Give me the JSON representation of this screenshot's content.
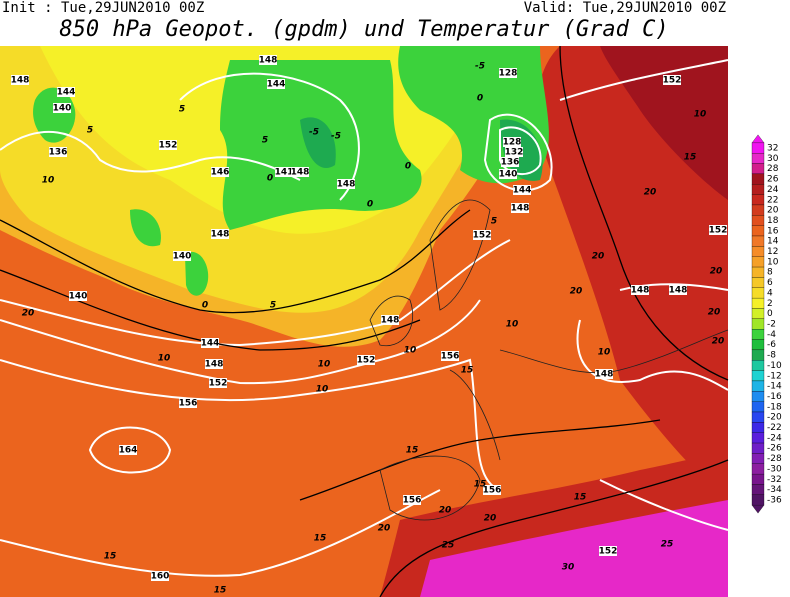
{
  "header": {
    "init": "Init : Tue,29JUN2010 00Z",
    "valid": "Valid: Tue,29JUN2010 00Z",
    "title": "850 hPa Geopot. (gpdm) und Temperatur (Grad C)"
  },
  "colorbar": {
    "levels": [
      32,
      30,
      28,
      26,
      24,
      22,
      20,
      18,
      16,
      14,
      12,
      10,
      8,
      6,
      4,
      2,
      0,
      -2,
      -4,
      -6,
      -8,
      -10,
      -12,
      -14,
      -16,
      -18,
      -20,
      -22,
      -24,
      -26,
      -28,
      -30,
      -32,
      -34,
      -36
    ],
    "colors": [
      "#f014f0",
      "#e628c8",
      "#d21e8c",
      "#a0141e",
      "#b41e1e",
      "#c8281e",
      "#d23c1e",
      "#e1501e",
      "#eb641e",
      "#f07828",
      "#f58c28",
      "#f5a028",
      "#f5b428",
      "#f5c828",
      "#f5dc28",
      "#f5f028",
      "#d2f028",
      "#a0e628",
      "#3cd23c",
      "#1ebe3c",
      "#1eaa50",
      "#1ec8a0",
      "#1ed2d2",
      "#1eb4e6",
      "#1e8cf0",
      "#1e64f0",
      "#2846f0",
      "#3c28e6",
      "#5a1edc",
      "#6e1ec8",
      "#821eb4",
      "#8c1ea0",
      "#78148c",
      "#641478",
      "#501464"
    ]
  },
  "map": {
    "geopotential_labels": [
      148,
      144,
      140,
      136,
      152,
      146,
      141,
      148,
      148,
      148,
      140,
      140,
      144,
      148,
      152,
      156,
      164,
      160,
      156,
      156,
      152,
      148,
      156,
      152,
      148,
      144,
      140,
      136,
      132,
      128,
      128,
      148,
      144,
      152,
      152,
      148,
      148,
      148,
      152
    ],
    "temperature_labels": [
      -5,
      -5,
      -5,
      0,
      0,
      0,
      0,
      0,
      5,
      5,
      5,
      5,
      5,
      10,
      10,
      10,
      10,
      10,
      10,
      10,
      10,
      15,
      15,
      15,
      15,
      15,
      15,
      15,
      15,
      20,
      20,
      20,
      20,
      20,
      20,
      20,
      20,
      20,
      25,
      25,
      30,
      20
    ]
  }
}
